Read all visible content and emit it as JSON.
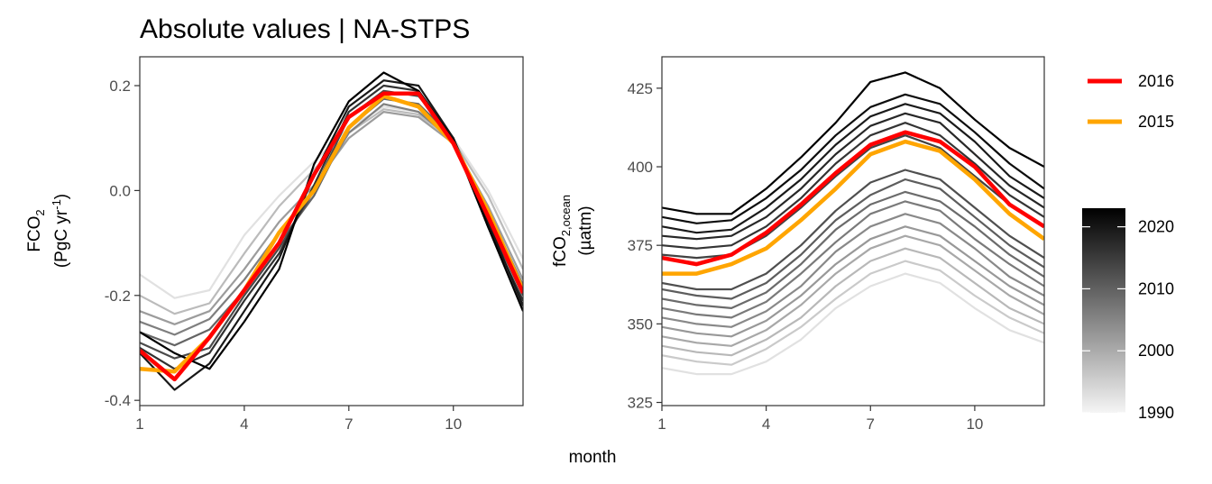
{
  "title": "Absolute values | NA-STPS",
  "xlabel": "month",
  "colors": {
    "highlight_2016": "#ff0000",
    "highlight_2015": "#ffa500",
    "years_dark": "#000000",
    "years_light": "#f0f0f0"
  },
  "legend": {
    "highlights": [
      {
        "label": "2016",
        "color": "#ff0000"
      },
      {
        "label": "2015",
        "color": "#ffa500"
      }
    ],
    "colorbar": {
      "ticks": [
        "2020",
        "2010",
        "2000",
        "1990"
      ],
      "range": [
        1990,
        2023
      ]
    }
  },
  "chart_data": [
    {
      "type": "line",
      "panel": "left",
      "ylabel_main": "FCO",
      "ylabel_main_sub": "2",
      "ylabel_unit_pre": "(PgC yr",
      "ylabel_unit_sup": "-1",
      "ylabel_unit_post": ")",
      "xlim": [
        1,
        12
      ],
      "ylim": [
        -0.41,
        0.255
      ],
      "xticks": [
        "1",
        "4",
        "7",
        "10"
      ],
      "yticks": [
        "0.2",
        "0.0",
        "-0.2",
        "-0.4"
      ],
      "grid": false,
      "x": [
        1,
        2,
        3,
        4,
        5,
        6,
        7,
        8,
        9,
        10,
        11,
        12
      ],
      "series": [
        {
          "values": [
            -0.16,
            -0.205,
            -0.19,
            -0.085,
            -0.01,
            0.055,
            0.12,
            0.16,
            0.15,
            0.1,
            0.0,
            -0.13
          ]
        },
        {
          "values": [
            -0.2,
            -0.235,
            -0.215,
            -0.12,
            -0.03,
            0.04,
            0.11,
            0.155,
            0.145,
            0.095,
            -0.01,
            -0.15
          ]
        },
        {
          "values": [
            -0.23,
            -0.255,
            -0.23,
            -0.15,
            -0.06,
            0.01,
            0.1,
            0.15,
            0.14,
            0.09,
            -0.03,
            -0.17
          ]
        },
        {
          "values": [
            -0.25,
            -0.275,
            -0.245,
            -0.17,
            -0.08,
            0.0,
            0.11,
            0.165,
            0.15,
            0.095,
            -0.04,
            -0.18
          ]
        },
        {
          "values": [
            -0.27,
            -0.295,
            -0.265,
            -0.19,
            -0.1,
            -0.01,
            0.12,
            0.175,
            0.165,
            0.1,
            -0.05,
            -0.195
          ]
        },
        {
          "values": [
            -0.29,
            -0.32,
            -0.3,
            -0.2,
            -0.11,
            0.0,
            0.14,
            0.19,
            0.18,
            0.1,
            -0.06,
            -0.2
          ]
        },
        {
          "values": [
            -0.3,
            -0.34,
            -0.31,
            -0.21,
            -0.12,
            0.01,
            0.15,
            0.2,
            0.19,
            0.1,
            -0.07,
            -0.21
          ]
        },
        {
          "values": [
            -0.31,
            -0.38,
            -0.33,
            -0.23,
            -0.13,
            0.03,
            0.16,
            0.21,
            0.2,
            0.1,
            -0.06,
            -0.22
          ]
        },
        {
          "values": [
            -0.27,
            -0.31,
            -0.34,
            -0.25,
            -0.15,
            0.05,
            0.17,
            0.225,
            0.19,
            0.095,
            -0.07,
            -0.23
          ]
        }
      ],
      "highlight_series": [
        {
          "name": "2015",
          "values": [
            -0.34,
            -0.345,
            -0.28,
            -0.19,
            -0.08,
            0.0,
            0.12,
            0.18,
            0.16,
            0.09,
            -0.04,
            -0.19
          ]
        },
        {
          "name": "2016",
          "values": [
            -0.305,
            -0.36,
            -0.28,
            -0.19,
            -0.1,
            0.03,
            0.14,
            0.185,
            0.185,
            0.09,
            -0.05,
            -0.195
          ]
        }
      ]
    },
    {
      "type": "line",
      "panel": "right",
      "ylabel_main": "fCO",
      "ylabel_main_sub": "2,ocean",
      "ylabel_unit": "(µatm)",
      "xlim": [
        1,
        12
      ],
      "ylim": [
        324,
        435
      ],
      "xticks": [
        "1",
        "4",
        "7",
        "10"
      ],
      "yticks": [
        "425",
        "400",
        "375",
        "350",
        "325"
      ],
      "grid": false,
      "x": [
        1,
        2,
        3,
        4,
        5,
        6,
        7,
        8,
        9,
        10,
        11,
        12
      ],
      "series": [
        {
          "values": [
            336,
            334,
            334,
            338,
            345,
            355,
            362,
            366,
            363,
            355,
            348,
            344
          ]
        },
        {
          "values": [
            340,
            338,
            337,
            342,
            349,
            358,
            366,
            370,
            367,
            359,
            352,
            347
          ]
        },
        {
          "values": [
            343,
            341,
            340,
            345,
            352,
            362,
            370,
            374,
            371,
            363,
            355,
            350
          ]
        },
        {
          "values": [
            346,
            344,
            343,
            348,
            356,
            366,
            374,
            378,
            375,
            367,
            359,
            353
          ]
        },
        {
          "values": [
            349,
            347,
            346,
            351,
            359,
            369,
            377,
            381,
            378,
            370,
            362,
            356
          ]
        },
        {
          "values": [
            352,
            350,
            349,
            354,
            362,
            373,
            381,
            385,
            382,
            374,
            365,
            359
          ]
        },
        {
          "values": [
            355,
            353,
            352,
            357,
            366,
            376,
            385,
            389,
            386,
            377,
            369,
            362
          ]
        },
        {
          "values": [
            358,
            356,
            355,
            360,
            369,
            380,
            388,
            392,
            389,
            381,
            372,
            365
          ]
        },
        {
          "values": [
            361,
            359,
            358,
            363,
            372,
            383,
            391,
            396,
            393,
            384,
            375,
            368
          ]
        },
        {
          "values": [
            363,
            361,
            361,
            366,
            375,
            386,
            395,
            399,
            396,
            387,
            378,
            371
          ]
        },
        {
          "values": [
            372,
            371,
            372,
            378,
            387,
            397,
            406,
            410,
            406,
            397,
            388,
            381
          ]
        },
        {
          "values": [
            375,
            374,
            375,
            381,
            390,
            401,
            410,
            414,
            410,
            401,
            391,
            384
          ]
        },
        {
          "values": [
            378,
            377,
            378,
            384,
            393,
            404,
            413,
            417,
            414,
            404,
            394,
            387
          ]
        },
        {
          "values": [
            381,
            379,
            380,
            387,
            396,
            407,
            416,
            420,
            417,
            408,
            397,
            390
          ]
        },
        {
          "values": [
            384,
            382,
            383,
            390,
            399,
            410,
            419,
            423,
            420,
            411,
            401,
            393
          ]
        },
        {
          "values": [
            387,
            385,
            385,
            393,
            403,
            414,
            427,
            430,
            425,
            415,
            406,
            400
          ]
        }
      ],
      "highlight_series": [
        {
          "name": "2015",
          "values": [
            366,
            366,
            369,
            374,
            383,
            393,
            404,
            408,
            405,
            396,
            385,
            377
          ]
        },
        {
          "name": "2016",
          "values": [
            371,
            369,
            372,
            379,
            388,
            398,
            407,
            411,
            408,
            400,
            388,
            381
          ]
        }
      ]
    }
  ]
}
